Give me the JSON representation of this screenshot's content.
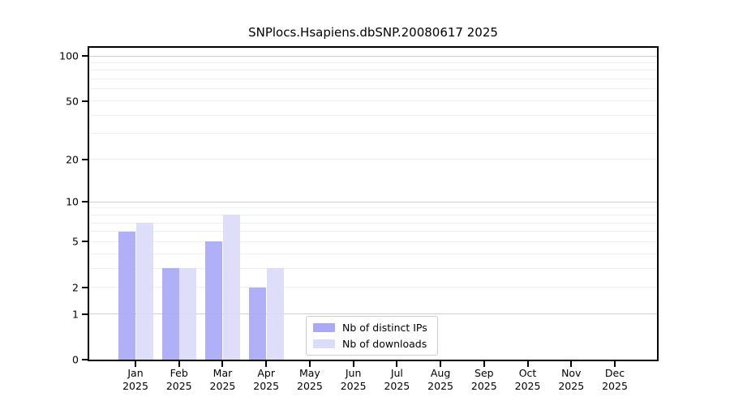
{
  "chart_data": {
    "type": "bar",
    "title": "SNPlocs.Hsapiens.dbSNP.20080617 2025",
    "categories": [
      "Jan",
      "Feb",
      "Mar",
      "Apr",
      "May",
      "Jun",
      "Jul",
      "Aug",
      "Sep",
      "Oct",
      "Nov",
      "Dec"
    ],
    "year": "2025",
    "series": [
      {
        "name": "Nb of distinct IPs",
        "color": "#a9a9f8",
        "values": [
          6,
          3,
          5,
          2,
          0,
          0,
          0,
          0,
          0,
          0,
          0,
          0
        ]
      },
      {
        "name": "Nb of downloads",
        "color": "#dbdbfb",
        "values": [
          7,
          3,
          8,
          3,
          0,
          0,
          0,
          0,
          0,
          0,
          0,
          0
        ]
      }
    ],
    "xlabel": "",
    "ylabel": "",
    "yscale": "log1p",
    "ylim": [
      0,
      100
    ],
    "yticks": [
      0,
      1,
      2,
      5,
      10,
      20,
      50,
      100
    ],
    "major_gridlines": [
      1,
      10,
      100
    ],
    "minor_gridlines": [
      2,
      3,
      4,
      5,
      6,
      7,
      8,
      9,
      20,
      30,
      40,
      50,
      60,
      70,
      80,
      90
    ],
    "grid": true,
    "legend_position": "lower-center"
  },
  "colors": {
    "axis": "#000000",
    "grid_major": "#cfcfcf",
    "grid_minor": "#f0f0f0",
    "legend_border": "#cccccc",
    "background": "#ffffff"
  }
}
